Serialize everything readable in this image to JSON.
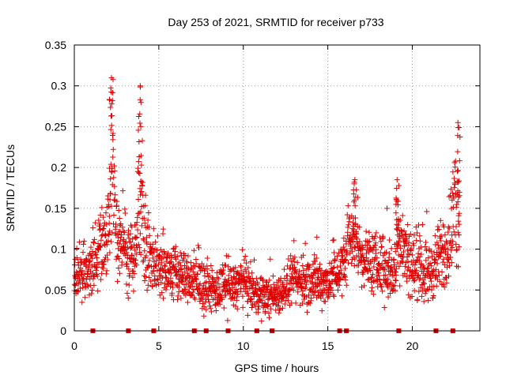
{
  "chart_data": {
    "type": "scatter",
    "title": "Day 253 of 2021, SRMTID for receiver p733",
    "xlabel": "GPS time / hours",
    "ylabel": "SRMTID / TECUs",
    "xlim": [
      0,
      24
    ],
    "ylim": [
      0,
      0.35
    ],
    "xticks": [
      0,
      5,
      10,
      15,
      20
    ],
    "xtick_labels": [
      "0",
      "5",
      "10",
      "15",
      "20"
    ],
    "yticks": [
      0,
      0.05,
      0.1,
      0.15,
      0.2,
      0.25,
      0.3,
      0.35
    ],
    "ytick_labels": [
      "0",
      "0.05",
      "0.1",
      "0.15",
      "0.2",
      "0.25",
      "0.3",
      "0.35"
    ],
    "grid": true,
    "marker": "plus",
    "color": "#e00000",
    "gap_markers_x": [
      1.1,
      3.2,
      4.7,
      7.1,
      7.8,
      9.1,
      10.8,
      11.7,
      15.7,
      16.1,
      19.2,
      21.4,
      22.4
    ],
    "series_envelope": [
      {
        "x": 0.0,
        "y": 0.06,
        "spread": 0.03
      },
      {
        "x": 0.5,
        "y": 0.07,
        "spread": 0.03
      },
      {
        "x": 1.0,
        "y": 0.08,
        "spread": 0.04
      },
      {
        "x": 1.5,
        "y": 0.11,
        "spread": 0.05
      },
      {
        "x": 2.0,
        "y": 0.12,
        "spread": 0.06
      },
      {
        "x": 2.2,
        "y": 0.2,
        "spread": 0.1
      },
      {
        "x": 2.6,
        "y": 0.11,
        "spread": 0.05
      },
      {
        "x": 3.0,
        "y": 0.1,
        "spread": 0.05
      },
      {
        "x": 3.5,
        "y": 0.08,
        "spread": 0.04
      },
      {
        "x": 3.9,
        "y": 0.18,
        "spread": 0.1
      },
      {
        "x": 4.2,
        "y": 0.1,
        "spread": 0.05
      },
      {
        "x": 5.0,
        "y": 0.08,
        "spread": 0.04
      },
      {
        "x": 6.0,
        "y": 0.07,
        "spread": 0.04
      },
      {
        "x": 7.0,
        "y": 0.06,
        "spread": 0.03
      },
      {
        "x": 8.0,
        "y": 0.05,
        "spread": 0.03
      },
      {
        "x": 9.0,
        "y": 0.05,
        "spread": 0.03
      },
      {
        "x": 10.0,
        "y": 0.06,
        "spread": 0.03
      },
      {
        "x": 11.0,
        "y": 0.04,
        "spread": 0.025
      },
      {
        "x": 12.0,
        "y": 0.045,
        "spread": 0.025
      },
      {
        "x": 13.0,
        "y": 0.06,
        "spread": 0.03
      },
      {
        "x": 14.0,
        "y": 0.06,
        "spread": 0.035
      },
      {
        "x": 15.0,
        "y": 0.06,
        "spread": 0.03
      },
      {
        "x": 16.0,
        "y": 0.08,
        "spread": 0.04
      },
      {
        "x": 16.5,
        "y": 0.12,
        "spread": 0.05
      },
      {
        "x": 17.0,
        "y": 0.09,
        "spread": 0.04
      },
      {
        "x": 18.0,
        "y": 0.08,
        "spread": 0.04
      },
      {
        "x": 19.0,
        "y": 0.07,
        "spread": 0.04
      },
      {
        "x": 19.2,
        "y": 0.12,
        "spread": 0.06
      },
      {
        "x": 20.0,
        "y": 0.08,
        "spread": 0.04
      },
      {
        "x": 21.0,
        "y": 0.07,
        "spread": 0.04
      },
      {
        "x": 22.0,
        "y": 0.1,
        "spread": 0.05
      },
      {
        "x": 22.6,
        "y": 0.15,
        "spread": 0.08
      }
    ],
    "peaks": [
      {
        "x": 2.2,
        "y": 0.31
      },
      {
        "x": 3.9,
        "y": 0.3
      },
      {
        "x": 16.6,
        "y": 0.185
      },
      {
        "x": 19.1,
        "y": 0.185
      },
      {
        "x": 22.7,
        "y": 0.255
      }
    ]
  }
}
